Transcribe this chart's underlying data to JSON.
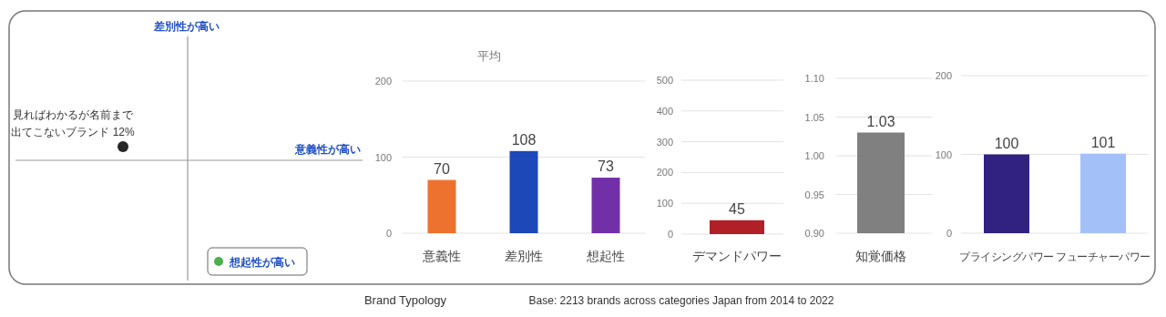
{
  "chart_data": [
    {
      "type": "other",
      "annotations": [
        "差別性が高い",
        "意義性が高い",
        "想起性が高い"
      ],
      "categories": [
        "見ればわかるが名前まで出てこないブランド"
      ],
      "values": [
        12
      ],
      "value_labels": [
        "12%"
      ],
      "colors": [
        "#262626"
      ]
    },
    {
      "type": "bar",
      "title": "平均",
      "categories": [
        "意義性",
        "差別性",
        "想起性"
      ],
      "values": [
        70,
        108,
        73
      ],
      "colors": [
        "#ed7230",
        "#1c48b8",
        "#7230a8"
      ],
      "ylim": [
        0,
        200
      ],
      "yticks": [
        0,
        100,
        200
      ],
      "grid": "y",
      "data_labels": true,
      "annotations": [
        "Brand Typology",
        "Base: 2213 brands across categories Japan from 2014 to 2022"
      ]
    },
    {
      "type": "bar",
      "categories": [
        "デマンドパワー"
      ],
      "values": [
        45
      ],
      "colors": [
        "#b02026"
      ],
      "ylim": [
        0,
        500
      ],
      "yticks": [
        0,
        100,
        200,
        300,
        400,
        500
      ],
      "grid": "y",
      "data_labels": true
    },
    {
      "type": "bar",
      "categories": [
        "知覚価格"
      ],
      "values": [
        1.03
      ],
      "colors": [
        "#808080"
      ],
      "ylim": [
        0.9,
        1.1
      ],
      "yticks": [
        {
          "value": 0.9,
          "label": "0.90"
        },
        {
          "value": 0.95,
          "label": "0.95"
        },
        {
          "value": 1.0,
          "label": "1.00"
        },
        {
          "value": 1.05,
          "label": "1.05"
        },
        {
          "value": 1.1,
          "label": "1.10"
        }
      ],
      "grid": "y",
      "data_labels": true
    },
    {
      "type": "bar",
      "categories": [
        "プライシングパワー",
        "フューチャーパワー"
      ],
      "values": [
        100,
        101
      ],
      "colors": [
        "#312282",
        "#a3c1f8"
      ],
      "ylim": [
        0,
        200
      ],
      "yticks": [
        0,
        100,
        200
      ],
      "grid": "y",
      "data_labels": true
    }
  ]
}
